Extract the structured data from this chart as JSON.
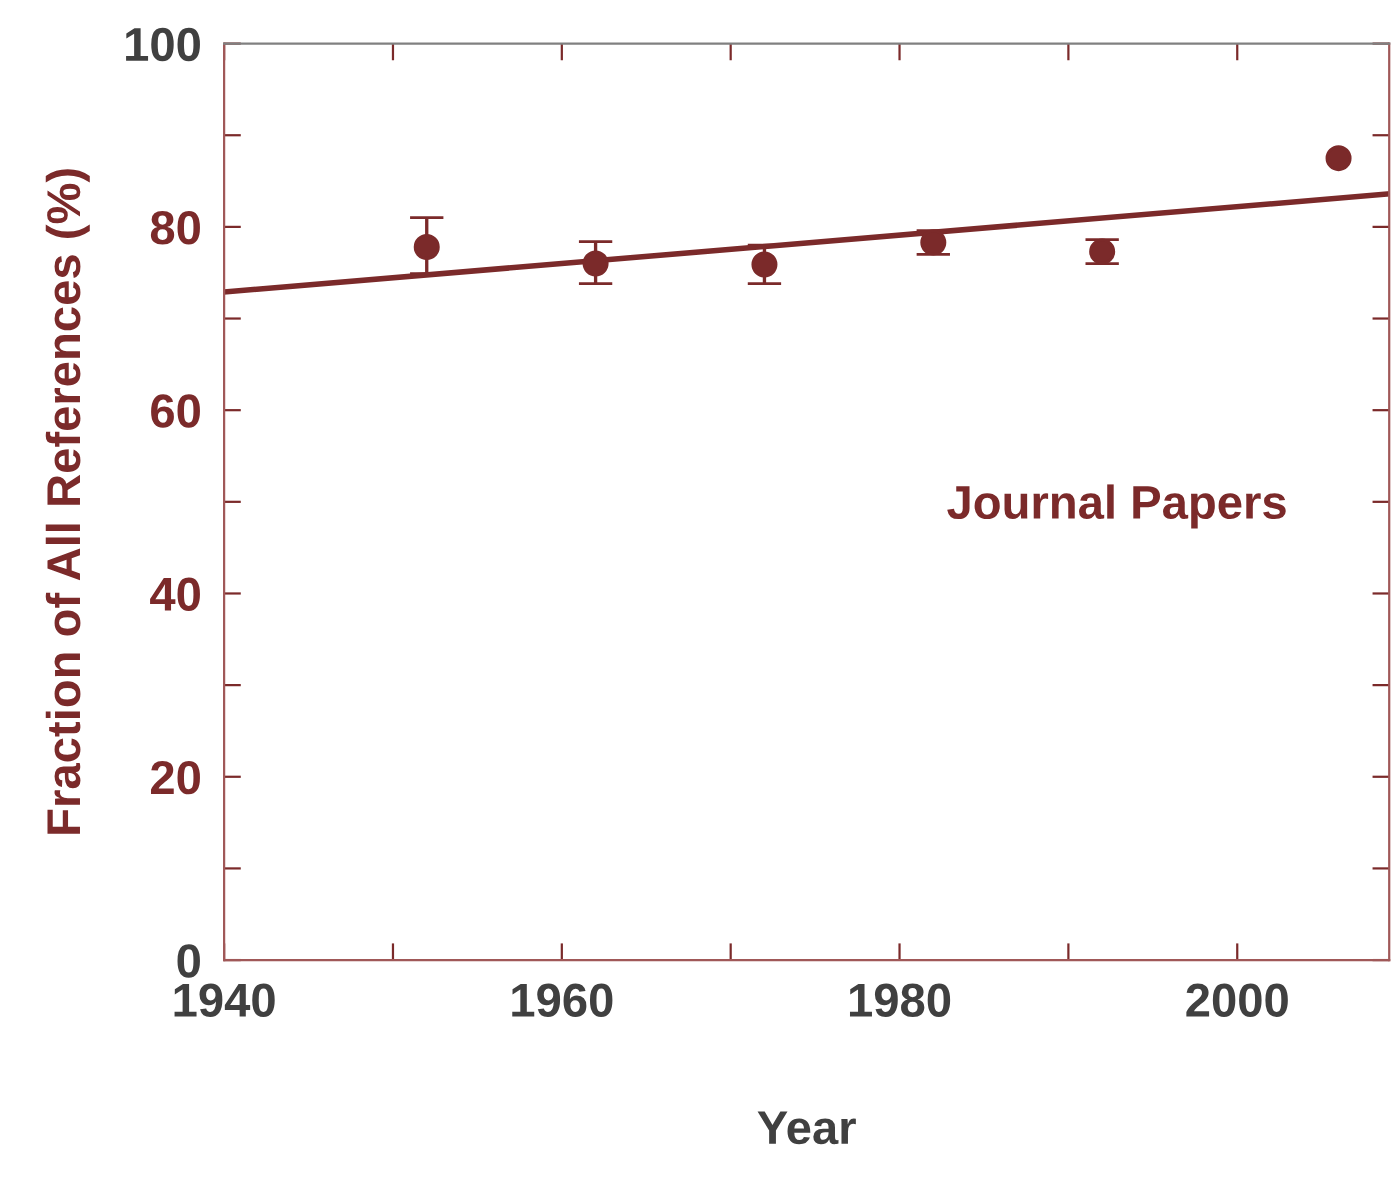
{
  "chart_data": {
    "type": "scatter",
    "xlabel": "Year",
    "ylabel": "Fraction of All References (%)",
    "annotations": [
      "Journal Papers"
    ],
    "xlim": [
      1940,
      2009
    ],
    "xticks": [
      1940,
      {
        "value": 1950,
        "label": null
      },
      1960,
      {
        "value": 1970,
        "label": null
      },
      1980,
      {
        "value": 1990,
        "label": null
      },
      2000
    ],
    "ylim": [
      0,
      100
    ],
    "yticks": [
      0,
      {
        "value": 10,
        "label": null
      },
      20,
      {
        "value": 30,
        "label": null
      },
      40,
      {
        "value": 50,
        "label": null
      },
      60,
      {
        "value": 70,
        "label": null
      },
      80,
      {
        "value": 90,
        "label": null
      },
      100
    ],
    "grid": false,
    "series": [
      {
        "marker": "circle",
        "color": "#7b2a2a",
        "x": [
          1952,
          1962,
          1972,
          1982,
          1992,
          2006
        ],
        "values": [
          77.8,
          76.0,
          75.9,
          78.3,
          77.3,
          87.5
        ],
        "errors": [
          [
            74.9,
            81.0
          ],
          [
            73.8,
            78.4
          ],
          [
            73.8,
            78.0
          ],
          [
            77.0,
            79.6
          ],
          [
            76.0,
            78.6
          ],
          null
        ]
      },
      {
        "type": "line",
        "color": "#7b2a2a",
        "x": [
          1940,
          2009
        ],
        "values": [
          72.9,
          83.6
        ]
      }
    ]
  }
}
